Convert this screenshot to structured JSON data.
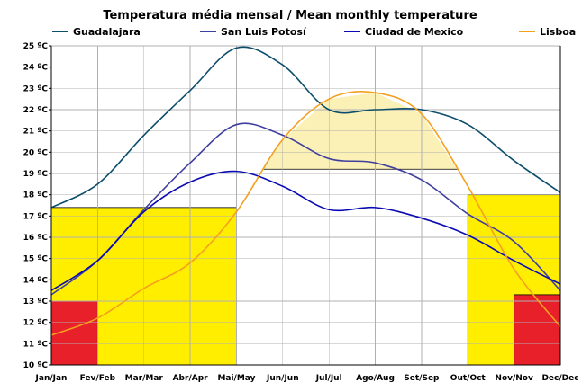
{
  "chart_data": {
    "type": "line",
    "title": "Temperatura média mensal / Mean monthly temperature",
    "xlabel": "",
    "ylabel": "",
    "categories": [
      "Jan/Jan",
      "Fev/Feb",
      "Mar/Mar",
      "Abr/Apr",
      "Mai/May",
      "Jun/Jun",
      "Jul/Jul",
      "Ago/Aug",
      "Set/Sep",
      "Out/Oct",
      "Nov/Nov",
      "Dec/Dec"
    ],
    "ylim": [
      10,
      25
    ],
    "y_ticks": [
      "10 ºC",
      "11 ºC",
      "12 ºC",
      "13 ºC",
      "14 ºC",
      "15 ºC",
      "16 ºC",
      "17 ºC",
      "18 ºC",
      "19 ºC",
      "20 ºC",
      "21 ºC",
      "22 ºC",
      "23 ºC",
      "24 ºC",
      "25 ºC"
    ],
    "grid": true,
    "legend_position": "top",
    "series": [
      {
        "name": "Guadalajara",
        "color": "#0b4d6b",
        "values": [
          17.4,
          18.5,
          20.8,
          22.9,
          24.9,
          24.1,
          22.0,
          22.0,
          22.0,
          21.3,
          19.6,
          18.1
        ]
      },
      {
        "name": "San Luis Potosí",
        "color": "#3f3f9f",
        "values": [
          13.3,
          14.9,
          17.3,
          19.5,
          21.3,
          20.8,
          19.7,
          19.5,
          18.7,
          17.1,
          15.8,
          13.5
        ]
      },
      {
        "name": "Ciudad de Mexico",
        "color": "#0a0ab4",
        "values": [
          13.5,
          14.9,
          17.2,
          18.6,
          19.1,
          18.4,
          17.3,
          17.4,
          16.9,
          16.1,
          14.9,
          13.8
        ]
      },
      {
        "name": "Lisboa",
        "color": "#f4a020",
        "values": [
          11.4,
          12.2,
          13.6,
          14.8,
          17.2,
          20.6,
          22.5,
          22.8,
          21.8,
          18.4,
          14.5,
          11.8
        ]
      }
    ],
    "annotations": {
      "yellow_region_cold_start": {
        "from": "Jan/Jan",
        "to": "Mai/May",
        "top": 17.4,
        "color": "#ffee00"
      },
      "yellow_region_cold_end": {
        "from": "Out/Oct",
        "to": "Dec/Dec",
        "top": 18.0,
        "color": "#ffee00"
      },
      "red_region_start": {
        "from": "Jan/Jan",
        "to": "Fev/Feb",
        "top": 13.0,
        "color": "#e8202a"
      },
      "red_region_end": {
        "from": "Nov/Nov",
        "to": "Dec/Dec",
        "top": 13.3,
        "color": "#e8202a"
      },
      "warm_region": {
        "from": "Jun/Jun",
        "to": "Out/Oct",
        "base": 19.2,
        "color": "#fbf0b5"
      }
    }
  }
}
